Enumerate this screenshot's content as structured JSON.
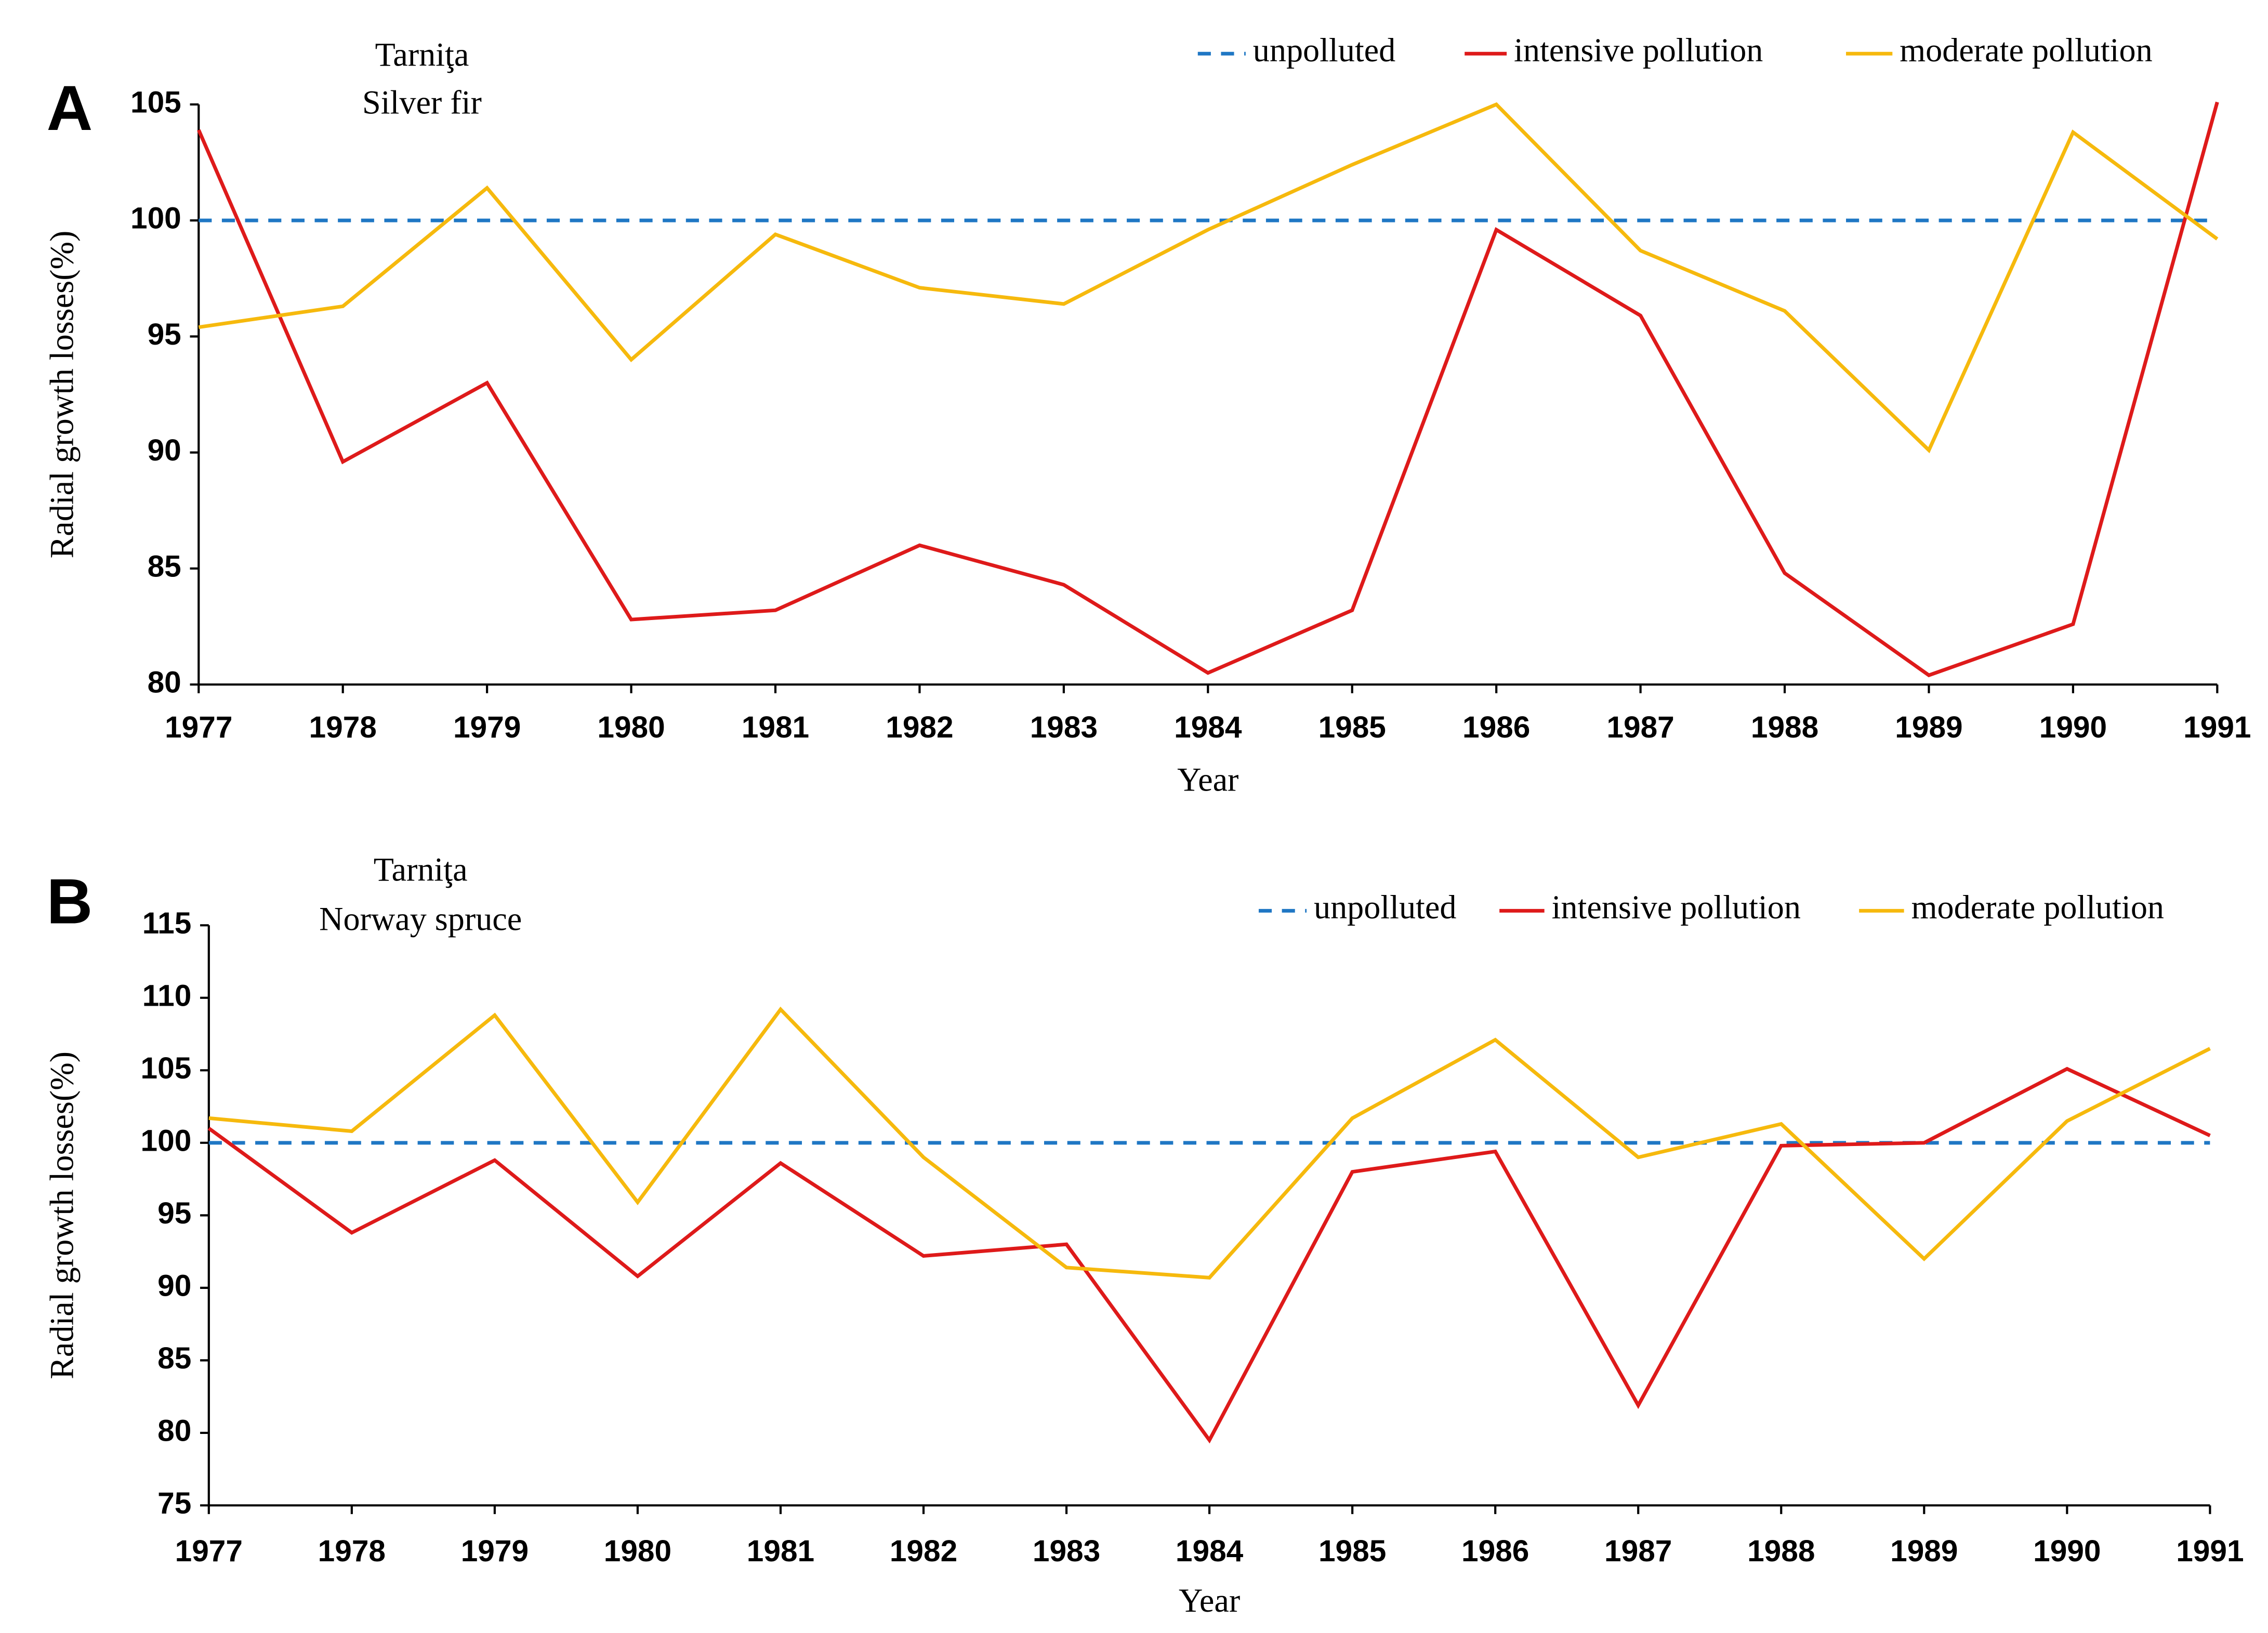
{
  "chart_data": [
    {
      "type": "line",
      "panel_label": "A",
      "title": "Tarniţa",
      "subtitle": "Silver fir",
      "x_label": "Year",
      "y_label": "Radial growth losses(%)",
      "x": [
        1977,
        1978,
        1979,
        1980,
        1981,
        1982,
        1983,
        1984,
        1985,
        1986,
        1987,
        1988,
        1989,
        1990,
        1991
      ],
      "xlim": [
        1977,
        1991
      ],
      "xticks": [
        1977,
        1978,
        1979,
        1980,
        1981,
        1982,
        1983,
        1984,
        1985,
        1986,
        1987,
        1988,
        1989,
        1990,
        1991
      ],
      "ylim": [
        80,
        105
      ],
      "yticks": [
        80,
        85,
        90,
        95,
        100,
        105
      ],
      "grid": false,
      "legend": "upper right",
      "series": [
        {
          "name": "unpolluted",
          "color": "#1f77c4",
          "dashed": true,
          "values": [
            100,
            100,
            100,
            100,
            100,
            100,
            100,
            100,
            100,
            100,
            100,
            100,
            100,
            100,
            100
          ]
        },
        {
          "name": "intensive pollution",
          "color": "#de1a1a",
          "dashed": false,
          "values": [
            103.9,
            89.6,
            93.0,
            82.8,
            83.2,
            86.0,
            84.3,
            80.5,
            83.2,
            99.6,
            95.9,
            84.8,
            80.4,
            82.6,
            105.1
          ]
        },
        {
          "name": "moderate pollution",
          "color": "#f6b90d",
          "dashed": false,
          "values": [
            95.4,
            96.3,
            101.4,
            94.0,
            99.4,
            97.1,
            96.4,
            99.6,
            102.4,
            105.0,
            98.7,
            96.1,
            90.1,
            103.8,
            99.2
          ]
        }
      ]
    },
    {
      "type": "line",
      "panel_label": "B",
      "title": "Tarniţa",
      "subtitle": "Norway spruce",
      "x_label": "Year",
      "y_label": "Radial growth losses(%)",
      "x": [
        1977,
        1978,
        1979,
        1980,
        1981,
        1982,
        1983,
        1984,
        1985,
        1986,
        1987,
        1988,
        1989,
        1990,
        1991
      ],
      "xlim": [
        1977,
        1991
      ],
      "xticks": [
        1977,
        1978,
        1979,
        1980,
        1981,
        1982,
        1983,
        1984,
        1985,
        1986,
        1987,
        1988,
        1989,
        1990,
        1991
      ],
      "ylim": [
        75,
        115
      ],
      "yticks": [
        75,
        80,
        85,
        90,
        95,
        100,
        105,
        110,
        115
      ],
      "grid": false,
      "legend": "upper right",
      "series": [
        {
          "name": "unpolluted",
          "color": "#1f77c4",
          "dashed": true,
          "values": [
            100,
            100,
            100,
            100,
            100,
            100,
            100,
            100,
            100,
            100,
            100,
            100,
            100,
            100,
            100
          ]
        },
        {
          "name": "intensive pollution",
          "color": "#de1a1a",
          "dashed": false,
          "values": [
            101.0,
            93.8,
            98.8,
            90.8,
            98.6,
            92.2,
            93.0,
            79.5,
            98.0,
            99.4,
            81.9,
            99.8,
            100.0,
            105.1,
            100.5
          ]
        },
        {
          "name": "moderate pollution",
          "color": "#f6b90d",
          "dashed": false,
          "values": [
            101.7,
            100.8,
            108.8,
            95.9,
            109.2,
            99.0,
            91.4,
            90.7,
            101.7,
            107.1,
            99.0,
            101.3,
            92.0,
            101.5,
            106.5
          ]
        }
      ]
    }
  ]
}
